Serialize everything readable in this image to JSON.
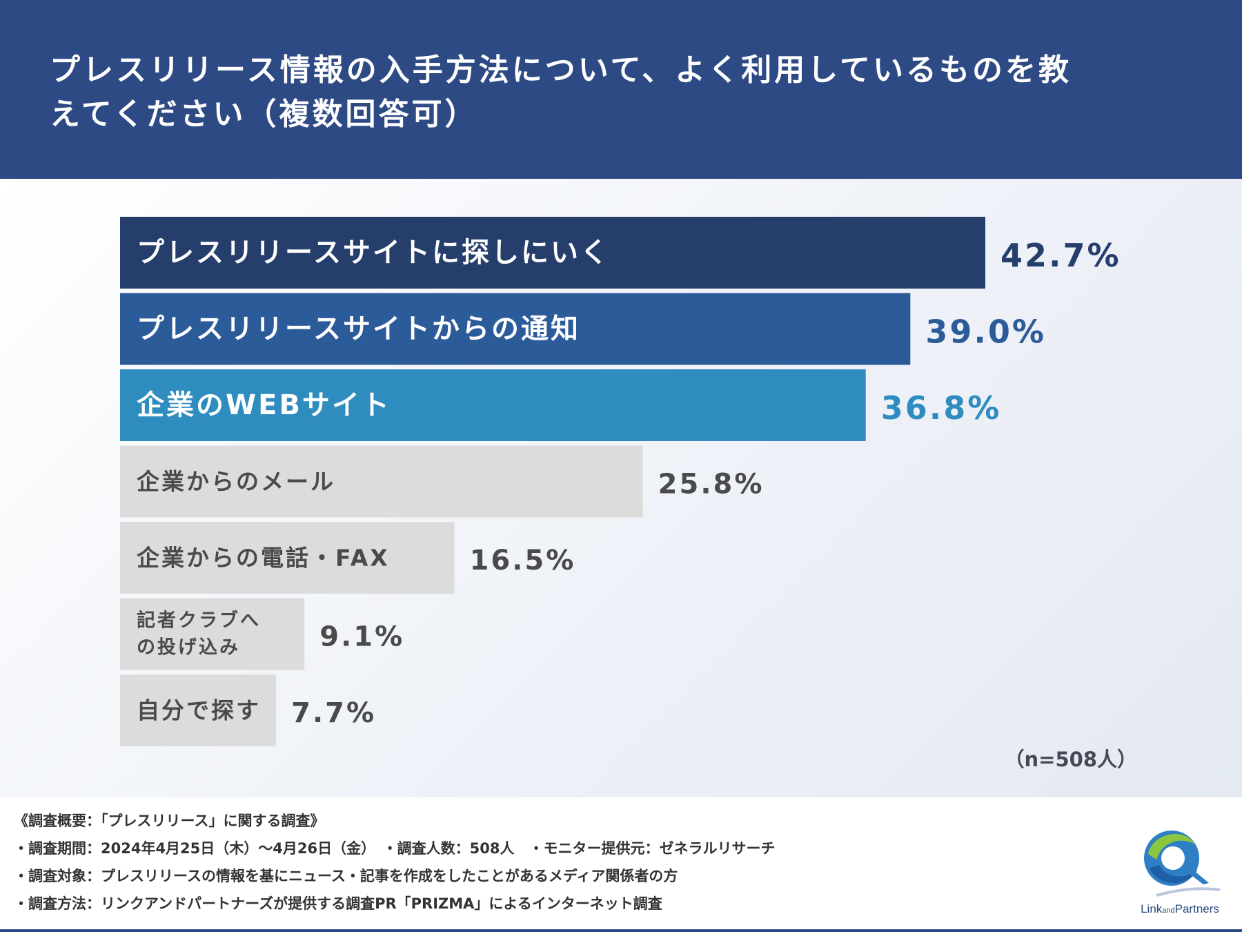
{
  "header": {
    "title_line1": "プレスリリース情報の入手方法について、よく利用しているものを教",
    "title_line2": "えてください（複数回答可）"
  },
  "chart_data": {
    "type": "bar",
    "orientation": "horizontal",
    "categories": [
      "プレスリリースサイトに探しにいく",
      "プレスリリースサイトからの通知",
      "企業のWEBサイト",
      "企業からのメール",
      "企業からの電話・FAX",
      "記者クラブへの投げ込み",
      "自分で探す"
    ],
    "category_lines": [
      [
        "プレスリリースサイトに探しにいく"
      ],
      [
        "プレスリリースサイトからの通知"
      ],
      [
        "企業のWEBサイト"
      ],
      [
        "企業からのメール"
      ],
      [
        "企業からの電話・FAX"
      ],
      [
        "記者クラブへ",
        "の投げ込み"
      ],
      [
        "自分で探す"
      ]
    ],
    "values": [
      42.7,
      39.0,
      36.8,
      25.8,
      16.5,
      9.1,
      7.7
    ],
    "value_labels": [
      "42.7%",
      "39.0%",
      "36.8%",
      "25.8%",
      "16.5%",
      "9.1%",
      "7.7%"
    ],
    "unit": "%",
    "xlim": [
      0,
      42.7
    ],
    "bar_colors": [
      "#263e6b",
      "#2c5b9a",
      "#2e8cbf",
      "#dcdcdc",
      "#dcdcdc",
      "#dcdcdc",
      "#dcdcdc"
    ],
    "label_colors": [
      "#ffffff",
      "#ffffff",
      "#ffffff",
      "#4a4a4a",
      "#4a4a4a",
      "#4a4a4a",
      "#4a4a4a"
    ],
    "value_colors": [
      "#263e6b",
      "#2c5b9a",
      "#2e8cbf",
      "#4a4a4a",
      "#4a4a4a",
      "#4a4a4a",
      "#4a4a4a"
    ],
    "sample_size": "（n=508人）",
    "grid": false,
    "legend": "none"
  },
  "footer": {
    "lines": [
      "《調査概要：「プレスリリース」に関する調査》",
      "・調査期間：2024年4月25日（木）〜4月26日（金）　・調査人数：508人　・モニター提供元：ゼネラルリサーチ",
      "・調査対象：プレスリリースの情報を基にニュース・記事を作成をしたことがあるメディア関係者の方",
      "・調査方法：リンクアンドパートナーズが提供する調査PR「PRIZMA」によるインターネット調査"
    ]
  },
  "logo": {
    "text_main1": "Link",
    "text_small": "and",
    "text_main2": "Partners"
  }
}
